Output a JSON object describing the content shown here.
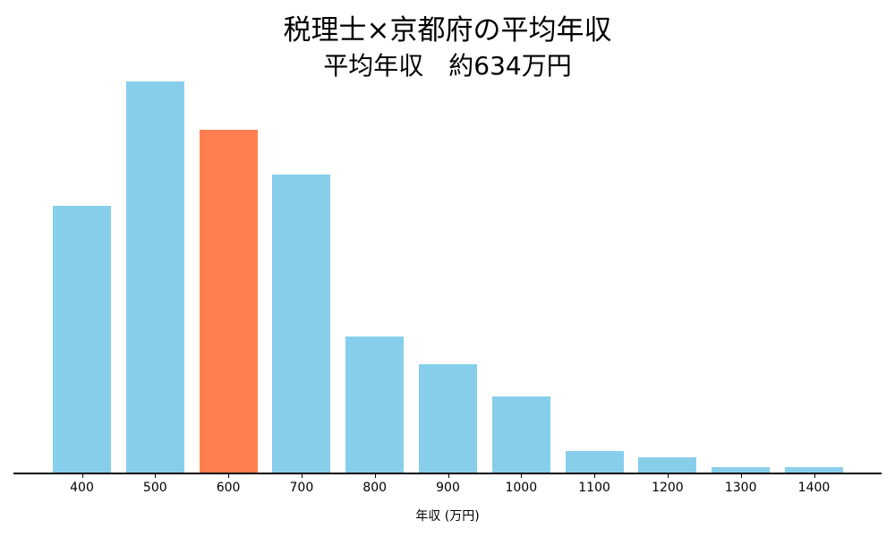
{
  "title": "税理士×京都府の平均年収",
  "subtitle": "平均年収　約634万円",
  "xlabel": "年収 (万円)",
  "colors": {
    "default": "#87CEEB",
    "highlight": "#FF7F50",
    "axis": "#000000"
  },
  "chart_data": {
    "type": "bar",
    "title": "税理士×京都府の平均年収",
    "subtitle": "平均年収　約634万円",
    "xlabel": "年収 (万円)",
    "ylabel": "",
    "categories": [
      "400",
      "500",
      "600",
      "700",
      "800",
      "900",
      "1000",
      "1100",
      "1200",
      "1300",
      "1400"
    ],
    "values": [
      299,
      438,
      384,
      334,
      153,
      122,
      86,
      25,
      18,
      7,
      7
    ],
    "value_note": "relative bar heights (no y-axis shown)",
    "highlight_category": "600",
    "grid": false,
    "legend": "none"
  }
}
